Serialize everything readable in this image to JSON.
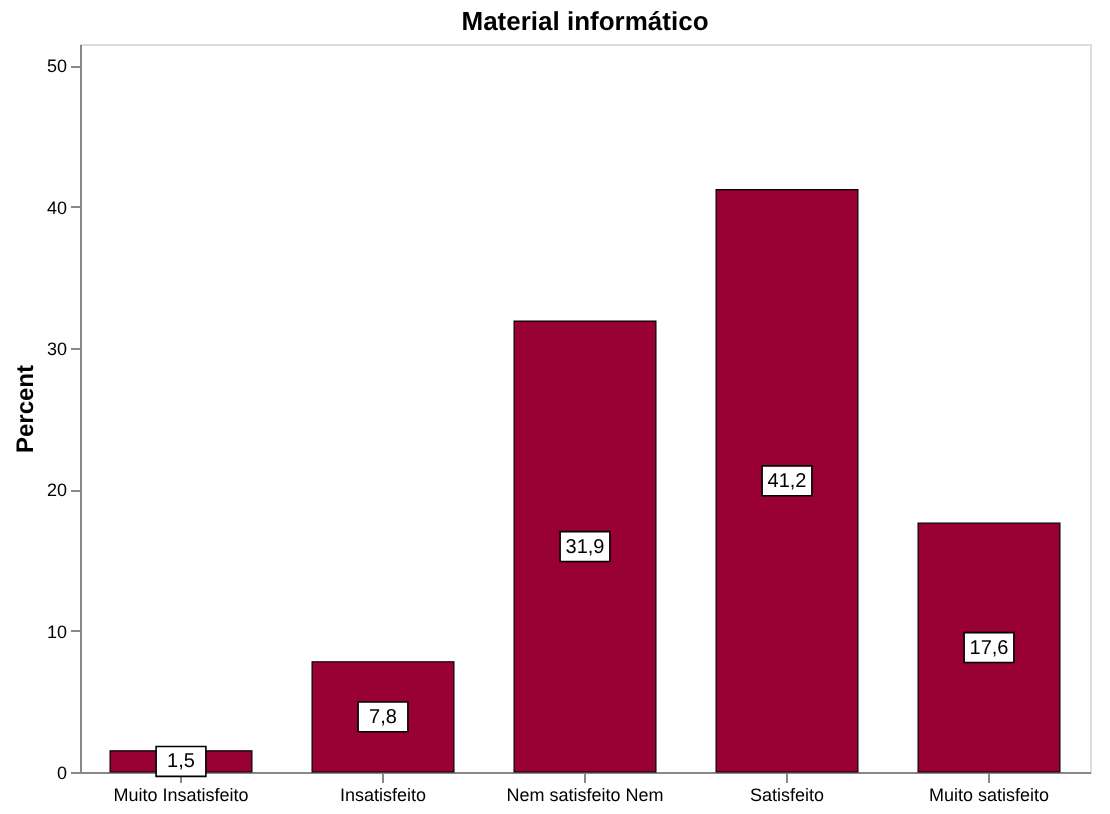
{
  "chart_data": {
    "type": "bar",
    "title": "Material informático",
    "ylabel": "Percent",
    "categories": [
      "Muito Insatisfeito",
      "Insatisfeito",
      "Nem satisfeito Nem",
      "Satisfeito",
      "Muito satisfeito"
    ],
    "values": [
      1.5,
      7.8,
      31.9,
      41.2,
      17.6
    ],
    "value_labels": [
      "1,5",
      "7,8",
      "31,9",
      "41,2",
      "17,6"
    ],
    "color": "#990033",
    "ylim": [
      0,
      51.5
    ],
    "yticks": [
      0,
      10,
      20,
      30,
      40,
      50
    ],
    "grid": false
  }
}
